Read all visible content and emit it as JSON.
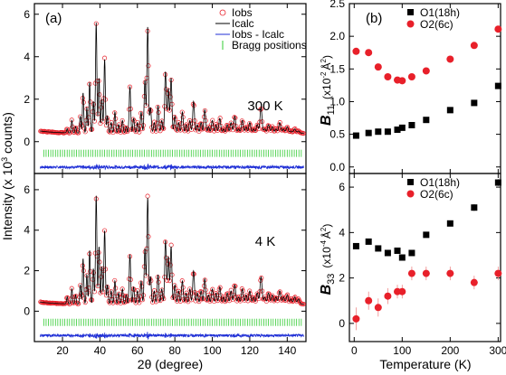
{
  "figure": {
    "left_panel_label": "(a)",
    "right_panel_label": "(b)",
    "left_ylabel": "Intensity (x 10",
    "left_ylabel_sup": "3",
    "left_ylabel_tail": " counts)",
    "left_xlabel": "2θ (degree)",
    "right_xlabel": "Temperature (K)",
    "b11_label_main": "B",
    "b11_label_sub": "11",
    "b11_label_unit_pre": "(x10",
    "b11_label_unit_sup": "-2",
    "b11_label_unit_post": "Å",
    "b11_label_unit_sup2": "2",
    "b11_label_unit_close": ")",
    "b33_label_main": "B",
    "b33_label_sub": "33",
    "b33_label_unit_pre": "(x10",
    "b33_label_unit_sup": "-4",
    "b33_label_unit_post": "Å",
    "b33_label_unit_sup2": "2",
    "b33_label_unit_close": ")",
    "colors": {
      "iobs": "#e8202a",
      "icalc": "#000000",
      "diff": "#1f2fd6",
      "bragg": "#33cc33",
      "o1": "#000000",
      "o2": "#e8202a"
    }
  },
  "chart_data": [
    {
      "type": "line",
      "panel": "top-left",
      "annotation": "300 K",
      "xlim": [
        5,
        150
      ],
      "ylim": [
        -1.5,
        6.5
      ],
      "xticks": [
        20,
        40,
        60,
        80,
        100,
        120,
        140
      ],
      "yticks": [
        0,
        2,
        4,
        6
      ],
      "legend": [
        "Iobs",
        "Icalc",
        "Iobs - Icalc",
        "Bragg positions"
      ],
      "legend_placement": "top-right",
      "peaks": [
        [
          22.5,
          0.6
        ],
        [
          25,
          1.0
        ],
        [
          27,
          0.7
        ],
        [
          29.5,
          1.2
        ],
        [
          31,
          2.3
        ],
        [
          33,
          1.6
        ],
        [
          34.5,
          2.8
        ],
        [
          36.5,
          1.9
        ],
        [
          38,
          5.6
        ],
        [
          39.5,
          3.0
        ],
        [
          41,
          2.0
        ],
        [
          42.5,
          3.9
        ],
        [
          44,
          1.2
        ],
        [
          46,
          0.9
        ],
        [
          48,
          1.4
        ],
        [
          50,
          0.8
        ],
        [
          52,
          1.0
        ],
        [
          54,
          0.7
        ],
        [
          56,
          2.6
        ],
        [
          58,
          1.1
        ],
        [
          60,
          0.9
        ],
        [
          62,
          1.4
        ],
        [
          64,
          2.9
        ],
        [
          65.5,
          5.4
        ],
        [
          67,
          1.6
        ],
        [
          69,
          0.9
        ],
        [
          71,
          1.7
        ],
        [
          73,
          1.0
        ],
        [
          75,
          3.3
        ],
        [
          76.5,
          2.5
        ],
        [
          78,
          3.0
        ],
        [
          80,
          1.2
        ],
        [
          82,
          0.9
        ],
        [
          84,
          1.4
        ],
        [
          86,
          0.8
        ],
        [
          88,
          1.0
        ],
        [
          90,
          1.9
        ],
        [
          92,
          0.8
        ],
        [
          94,
          0.9
        ],
        [
          96,
          1.5
        ],
        [
          98,
          0.7
        ],
        [
          100,
          1.0
        ],
        [
          102,
          0.8
        ],
        [
          104,
          1.1
        ],
        [
          106,
          0.6
        ],
        [
          108,
          0.8
        ],
        [
          110,
          0.9
        ],
        [
          112,
          1.2
        ],
        [
          114,
          0.6
        ],
        [
          116,
          1.0
        ],
        [
          118,
          0.7
        ],
        [
          120,
          0.9
        ],
        [
          122,
          0.6
        ],
        [
          124,
          0.8
        ],
        [
          126,
          1.6
        ],
        [
          128,
          0.6
        ],
        [
          130,
          0.8
        ],
        [
          132,
          0.7
        ],
        [
          134,
          0.6
        ],
        [
          136,
          0.9
        ],
        [
          138,
          0.6
        ],
        [
          140,
          0.7
        ],
        [
          142,
          0.5
        ],
        [
          144,
          0.6
        ],
        [
          146,
          0.5
        ]
      ],
      "background": 0.4,
      "bragg_level": -0.55,
      "diff_level": -1.2
    },
    {
      "type": "line",
      "panel": "bottom-left",
      "annotation": "4 K",
      "xlim": [
        5,
        150
      ],
      "ylim": [
        -1.5,
        6.8
      ],
      "xticks": [
        20,
        40,
        60,
        80,
        100,
        120,
        140
      ],
      "yticks": [
        0,
        2,
        4,
        6
      ],
      "peaks": [
        [
          22.5,
          0.7
        ],
        [
          25,
          1.1
        ],
        [
          27,
          0.8
        ],
        [
          29.5,
          1.3
        ],
        [
          31,
          2.6
        ],
        [
          33,
          1.8
        ],
        [
          34.5,
          3.0
        ],
        [
          36.5,
          2.1
        ],
        [
          38,
          5.7
        ],
        [
          39.5,
          3.2
        ],
        [
          41,
          2.2
        ],
        [
          42.5,
          4.0
        ],
        [
          44,
          1.3
        ],
        [
          46,
          1.0
        ],
        [
          48,
          1.5
        ],
        [
          50,
          0.9
        ],
        [
          52,
          1.1
        ],
        [
          54,
          0.8
        ],
        [
          56,
          2.8
        ],
        [
          58,
          1.2
        ],
        [
          60,
          1.0
        ],
        [
          62,
          1.5
        ],
        [
          64,
          3.1
        ],
        [
          65.5,
          5.6
        ],
        [
          67,
          1.7
        ],
        [
          69,
          1.0
        ],
        [
          71,
          1.8
        ],
        [
          73,
          1.1
        ],
        [
          75,
          3.5
        ],
        [
          76.5,
          2.7
        ],
        [
          78,
          3.2
        ],
        [
          80,
          1.3
        ],
        [
          82,
          1.0
        ],
        [
          84,
          1.5
        ],
        [
          86,
          0.9
        ],
        [
          88,
          1.1
        ],
        [
          90,
          2.0
        ],
        [
          92,
          0.9
        ],
        [
          94,
          1.0
        ],
        [
          96,
          1.6
        ],
        [
          98,
          0.8
        ],
        [
          100,
          1.1
        ],
        [
          102,
          0.9
        ],
        [
          104,
          1.2
        ],
        [
          106,
          0.7
        ],
        [
          108,
          0.9
        ],
        [
          110,
          1.0
        ],
        [
          112,
          1.3
        ],
        [
          114,
          0.7
        ],
        [
          116,
          1.1
        ],
        [
          118,
          0.8
        ],
        [
          120,
          1.0
        ],
        [
          122,
          0.7
        ],
        [
          124,
          0.9
        ],
        [
          126,
          1.7
        ],
        [
          128,
          0.7
        ],
        [
          130,
          0.9
        ],
        [
          132,
          0.8
        ],
        [
          134,
          0.7
        ],
        [
          136,
          1.0
        ],
        [
          138,
          0.7
        ],
        [
          140,
          0.8
        ],
        [
          142,
          0.6
        ],
        [
          144,
          0.7
        ],
        [
          146,
          0.6
        ]
      ],
      "background": 0.35,
      "bragg_level": -0.55,
      "diff_level": -1.2
    },
    {
      "type": "scatter",
      "panel": "top-right",
      "xlim": [
        -10,
        305
      ],
      "ylim": [
        -0.1,
        2.5
      ],
      "xticks": [
        0,
        100,
        200,
        300
      ],
      "yticks": [
        0.0,
        0.5,
        1.0,
        1.5,
        2.0,
        2.5
      ],
      "ytick_labels": [
        "0.0",
        "0.5",
        "1.0",
        "1.5",
        "2.0",
        "2.5"
      ],
      "legend_placement": "top-center",
      "series": [
        {
          "name": "O1(18h)",
          "marker": "square",
          "x": [
            4,
            30,
            50,
            70,
            90,
            100,
            120,
            150,
            200,
            250,
            300
          ],
          "y": [
            0.48,
            0.52,
            0.54,
            0.54,
            0.57,
            0.6,
            0.64,
            0.72,
            0.87,
            0.98,
            1.24
          ]
        },
        {
          "name": "O2(6c)",
          "marker": "circle",
          "x": [
            4,
            30,
            50,
            70,
            90,
            100,
            120,
            150,
            200,
            250,
            300
          ],
          "y": [
            1.77,
            1.75,
            1.53,
            1.38,
            1.33,
            1.32,
            1.38,
            1.47,
            1.65,
            1.86,
            2.11
          ]
        }
      ]
    },
    {
      "type": "scatter",
      "panel": "bottom-right",
      "xlim": [
        -10,
        305
      ],
      "ylim": [
        -0.8,
        6.6
      ],
      "xticks": [
        0,
        100,
        200,
        300
      ],
      "xtick_labels": [
        "0",
        "100",
        "200",
        "300"
      ],
      "yticks": [
        0,
        2,
        4,
        6
      ],
      "legend_placement": "top-center",
      "series": [
        {
          "name": "O1(18h)",
          "marker": "square",
          "x": [
            4,
            30,
            50,
            70,
            90,
            100,
            120,
            150,
            200,
            250,
            300
          ],
          "y": [
            3.4,
            3.6,
            3.3,
            3.1,
            3.2,
            2.9,
            3.1,
            3.9,
            4.4,
            5.1,
            6.2
          ],
          "err": [
            0.1,
            0.1,
            0.1,
            0.1,
            0.1,
            0.1,
            0.1,
            0.1,
            0.1,
            0.15,
            0.15
          ]
        },
        {
          "name": "O2(6c)",
          "marker": "circle",
          "x": [
            4,
            30,
            50,
            70,
            90,
            100,
            120,
            150,
            200,
            250,
            300
          ],
          "y": [
            0.2,
            1.0,
            0.7,
            1.2,
            1.4,
            1.4,
            2.2,
            2.2,
            2.2,
            1.8,
            2.2
          ],
          "err": [
            0.5,
            0.4,
            0.4,
            0.35,
            0.3,
            0.3,
            0.3,
            0.3,
            0.3,
            0.3,
            0.3
          ]
        }
      ]
    }
  ]
}
